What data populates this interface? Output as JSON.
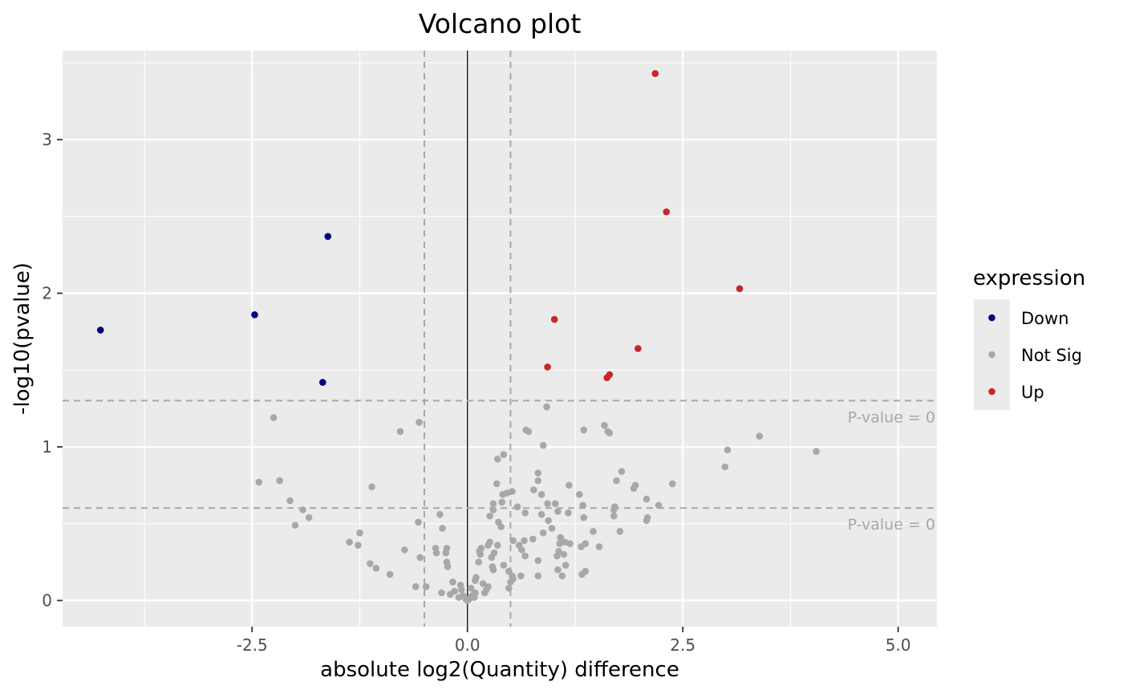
{
  "chart_data": {
    "type": "scatter",
    "title": "Volcano plot",
    "xlabel": "absolute log2(Quantity) difference",
    "ylabel": "-log10(pvalue)",
    "xlim": [
      -4.7,
      5.45
    ],
    "ylim": [
      -0.17,
      3.58
    ],
    "x_ticks": [
      -2.5,
      0.0,
      2.5,
      5.0
    ],
    "x_tick_labels": [
      "-2.5",
      "0.0",
      "2.5",
      "5.0"
    ],
    "y_ticks": [
      0,
      1,
      2,
      3
    ],
    "y_tick_labels": [
      "0",
      "1",
      "2",
      "3"
    ],
    "grid": true,
    "background": "#ebebeb",
    "vertical_lines": [
      {
        "x": -0.5,
        "style": "dashed",
        "color": "#a8a8a8"
      },
      {
        "x": 0.0,
        "style": "solid",
        "color": "#000000"
      },
      {
        "x": 0.5,
        "style": "dashed",
        "color": "#a8a8a8"
      }
    ],
    "horizontal_lines": [
      {
        "y": 1.301,
        "style": "dashed",
        "color": "#a8a8a8",
        "label": "P-value =  0"
      },
      {
        "y": 0.602,
        "style": "dashed",
        "color": "#a8a8a8",
        "label": "P-value =  0"
      }
    ],
    "legend": {
      "title": "expression",
      "position": "right",
      "entries": [
        {
          "name": "Down",
          "color": "#00007f"
        },
        {
          "name": "Not Sig",
          "color": "#a8a8a8"
        },
        {
          "name": "Up",
          "color": "#c8262a"
        }
      ]
    },
    "series": [
      {
        "name": "Down",
        "color": "#00007f",
        "points": [
          [
            -4.26,
            1.76
          ],
          [
            -2.47,
            1.86
          ],
          [
            -1.62,
            2.37
          ],
          [
            -1.68,
            1.42
          ]
        ]
      },
      {
        "name": "Up",
        "color": "#c8262a",
        "points": [
          [
            2.18,
            3.43
          ],
          [
            2.31,
            2.53
          ],
          [
            3.16,
            2.03
          ],
          [
            1.01,
            1.83
          ],
          [
            1.98,
            1.64
          ],
          [
            0.93,
            1.52
          ],
          [
            1.65,
            1.47
          ],
          [
            1.62,
            1.45
          ]
        ]
      },
      {
        "name": "Not Sig",
        "color": "#a8a8a8",
        "points": [
          [
            -2.25,
            1.19
          ],
          [
            -0.78,
            1.1
          ],
          [
            -0.56,
            1.16
          ],
          [
            0.92,
            1.26
          ],
          [
            0.68,
            1.11
          ],
          [
            0.71,
            1.1
          ],
          [
            0.88,
            1.01
          ],
          [
            1.35,
            1.11
          ],
          [
            1.59,
            1.14
          ],
          [
            1.63,
            1.1
          ],
          [
            1.65,
            1.09
          ],
          [
            3.39,
            1.07
          ],
          [
            3.02,
            0.98
          ],
          [
            4.05,
            0.97
          ],
          [
            2.99,
            0.87
          ],
          [
            -2.42,
            0.77
          ],
          [
            -2.18,
            0.78
          ],
          [
            -2.06,
            0.65
          ],
          [
            -1.91,
            0.59
          ],
          [
            -2.0,
            0.49
          ],
          [
            -1.84,
            0.54
          ],
          [
            -1.11,
            0.74
          ],
          [
            -1.37,
            0.38
          ],
          [
            -1.27,
            0.36
          ],
          [
            -1.25,
            0.44
          ],
          [
            -1.13,
            0.24
          ],
          [
            -1.06,
            0.21
          ],
          [
            -0.9,
            0.17
          ],
          [
            -0.73,
            0.33
          ],
          [
            -0.57,
            0.51
          ],
          [
            -0.55,
            0.28
          ],
          [
            -0.6,
            0.09
          ],
          [
            -0.48,
            0.09
          ],
          [
            -0.32,
            0.56
          ],
          [
            -0.29,
            0.47
          ],
          [
            -0.37,
            0.34
          ],
          [
            -0.36,
            0.31
          ],
          [
            -0.24,
            0.34
          ],
          [
            -0.25,
            0.31
          ],
          [
            -0.24,
            0.25
          ],
          [
            -0.23,
            0.22
          ],
          [
            -0.17,
            0.12
          ],
          [
            -0.3,
            0.05
          ],
          [
            -0.2,
            0.04
          ],
          [
            -0.15,
            0.06
          ],
          [
            -0.1,
            0.02
          ],
          [
            -0.05,
            0.03
          ],
          [
            -0.08,
            0.1
          ],
          [
            -0.07,
            0.07
          ],
          [
            -0.02,
            0.01
          ],
          [
            0.0,
            0.0
          ],
          [
            0.02,
            0.01
          ],
          [
            0.05,
            0.03
          ],
          [
            0.04,
            0.08
          ],
          [
            0.08,
            0.02
          ],
          [
            0.1,
            0.15
          ],
          [
            0.09,
            0.13
          ],
          [
            0.13,
            0.25
          ],
          [
            0.15,
            0.3
          ],
          [
            0.14,
            0.32
          ],
          [
            0.18,
            0.11
          ],
          [
            0.2,
            0.05
          ],
          [
            0.22,
            0.07
          ],
          [
            0.24,
            0.09
          ],
          [
            0.24,
            0.36
          ],
          [
            0.26,
            0.38
          ],
          [
            0.28,
            0.28
          ],
          [
            0.29,
            0.22
          ],
          [
            0.3,
            0.2
          ],
          [
            0.31,
            0.31
          ],
          [
            0.26,
            0.55
          ],
          [
            0.3,
            0.59
          ],
          [
            0.3,
            0.63
          ],
          [
            0.34,
            0.76
          ],
          [
            0.35,
            0.36
          ],
          [
            0.36,
            0.51
          ],
          [
            0.39,
            0.48
          ],
          [
            0.4,
            0.64
          ],
          [
            0.41,
            0.69
          ],
          [
            0.35,
            0.92
          ],
          [
            0.42,
            0.95
          ],
          [
            0.42,
            0.23
          ],
          [
            0.48,
            0.19
          ],
          [
            0.48,
            0.08
          ],
          [
            0.5,
            0.12
          ],
          [
            0.52,
            0.71
          ],
          [
            0.53,
            0.39
          ],
          [
            0.52,
            0.16
          ],
          [
            0.53,
            0.14
          ],
          [
            0.58,
            0.61
          ],
          [
            0.6,
            0.36
          ],
          [
            0.63,
            0.33
          ],
          [
            0.66,
            0.39
          ],
          [
            0.67,
            0.57
          ],
          [
            0.67,
            0.29
          ],
          [
            0.76,
            0.4
          ],
          [
            0.77,
            0.72
          ],
          [
            0.82,
            0.83
          ],
          [
            0.82,
            0.78
          ],
          [
            0.82,
            0.26
          ],
          [
            0.82,
            0.16
          ],
          [
            0.86,
            0.69
          ],
          [
            0.86,
            0.56
          ],
          [
            0.88,
            0.44
          ],
          [
            0.93,
            0.63
          ],
          [
            0.94,
            0.52
          ],
          [
            0.98,
            0.47
          ],
          [
            1.02,
            0.63
          ],
          [
            1.05,
            0.58
          ],
          [
            1.06,
            0.32
          ],
          [
            1.07,
            0.37
          ],
          [
            1.08,
            0.41
          ],
          [
            1.1,
            0.16
          ],
          [
            1.12,
            0.3
          ],
          [
            1.13,
            0.38
          ],
          [
            1.14,
            0.23
          ],
          [
            1.17,
            0.57
          ],
          [
            1.18,
            0.75
          ],
          [
            1.19,
            0.37
          ],
          [
            1.04,
            0.29
          ],
          [
            1.05,
            0.2
          ],
          [
            1.3,
            0.69
          ],
          [
            1.32,
            0.35
          ],
          [
            1.33,
            0.17
          ],
          [
            1.34,
            0.62
          ],
          [
            1.35,
            0.54
          ],
          [
            1.37,
            0.37
          ],
          [
            1.37,
            0.19
          ],
          [
            1.46,
            0.45
          ],
          [
            1.53,
            0.35
          ],
          [
            1.7,
            0.59
          ],
          [
            1.71,
            0.61
          ],
          [
            1.7,
            0.55
          ],
          [
            1.73,
            0.78
          ],
          [
            1.77,
            0.45
          ],
          [
            1.79,
            0.84
          ],
          [
            1.93,
            0.73
          ],
          [
            1.95,
            0.75
          ],
          [
            2.08,
            0.66
          ],
          [
            2.09,
            0.54
          ],
          [
            2.08,
            0.52
          ],
          [
            2.22,
            0.62
          ],
          [
            2.38,
            0.76
          ],
          [
            0.16,
            0.34
          ],
          [
            0.46,
            0.7
          ],
          [
            0.62,
            0.16
          ],
          [
            0.09,
            0.05
          ]
        ]
      }
    ]
  }
}
